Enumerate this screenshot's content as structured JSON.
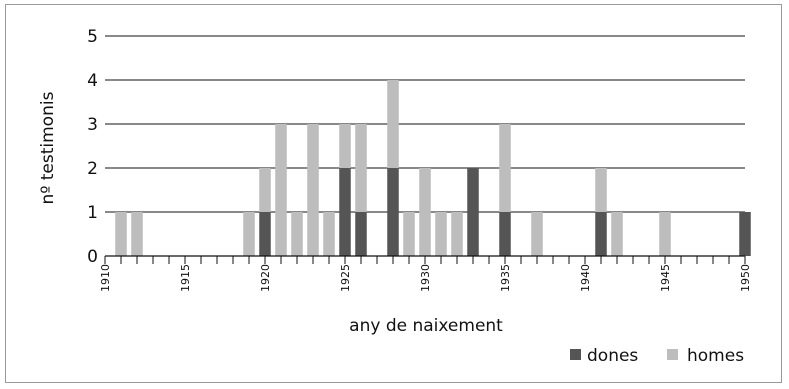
{
  "chart_data": {
    "type": "bar",
    "stacked": true,
    "title": "",
    "xlabel": "any de naixement",
    "ylabel": "nº testimonis",
    "ylim": [
      0,
      5
    ],
    "yticks": [
      "0",
      "1",
      "2",
      "3",
      "4",
      "5"
    ],
    "grid": true,
    "legend_position": "bottom-right",
    "x_range": [
      1910,
      1950
    ],
    "x_tick_labels": [
      "1910",
      "1915",
      "1920",
      "1925",
      "1930",
      "1935",
      "1940",
      "1945",
      "1950"
    ],
    "categories": [
      1910,
      1911,
      1912,
      1913,
      1914,
      1915,
      1916,
      1917,
      1918,
      1919,
      1920,
      1921,
      1922,
      1923,
      1924,
      1925,
      1926,
      1927,
      1928,
      1929,
      1930,
      1931,
      1932,
      1933,
      1934,
      1935,
      1936,
      1937,
      1938,
      1939,
      1940,
      1941,
      1942,
      1943,
      1944,
      1945,
      1946,
      1947,
      1948,
      1949,
      1950
    ],
    "series": [
      {
        "name": "dones",
        "color": "#555555",
        "values": [
          0,
          0,
          0,
          0,
          0,
          0,
          0,
          0,
          0,
          0,
          1,
          0,
          0,
          0,
          0,
          2,
          1,
          0,
          2,
          0,
          0,
          0,
          0,
          2,
          0,
          1,
          0,
          0,
          0,
          0,
          0,
          1,
          0,
          0,
          0,
          0,
          0,
          0,
          0,
          0,
          1
        ]
      },
      {
        "name": "homes",
        "color": "#bdbdbd",
        "values": [
          0,
          1,
          1,
          0,
          0,
          0,
          0,
          0,
          0,
          1,
          1,
          3,
          1,
          3,
          1,
          1,
          2,
          0,
          2,
          1,
          2,
          1,
          1,
          0,
          0,
          2,
          0,
          1,
          0,
          0,
          0,
          1,
          1,
          0,
          0,
          1,
          0,
          0,
          0,
          0,
          0
        ]
      }
    ]
  }
}
